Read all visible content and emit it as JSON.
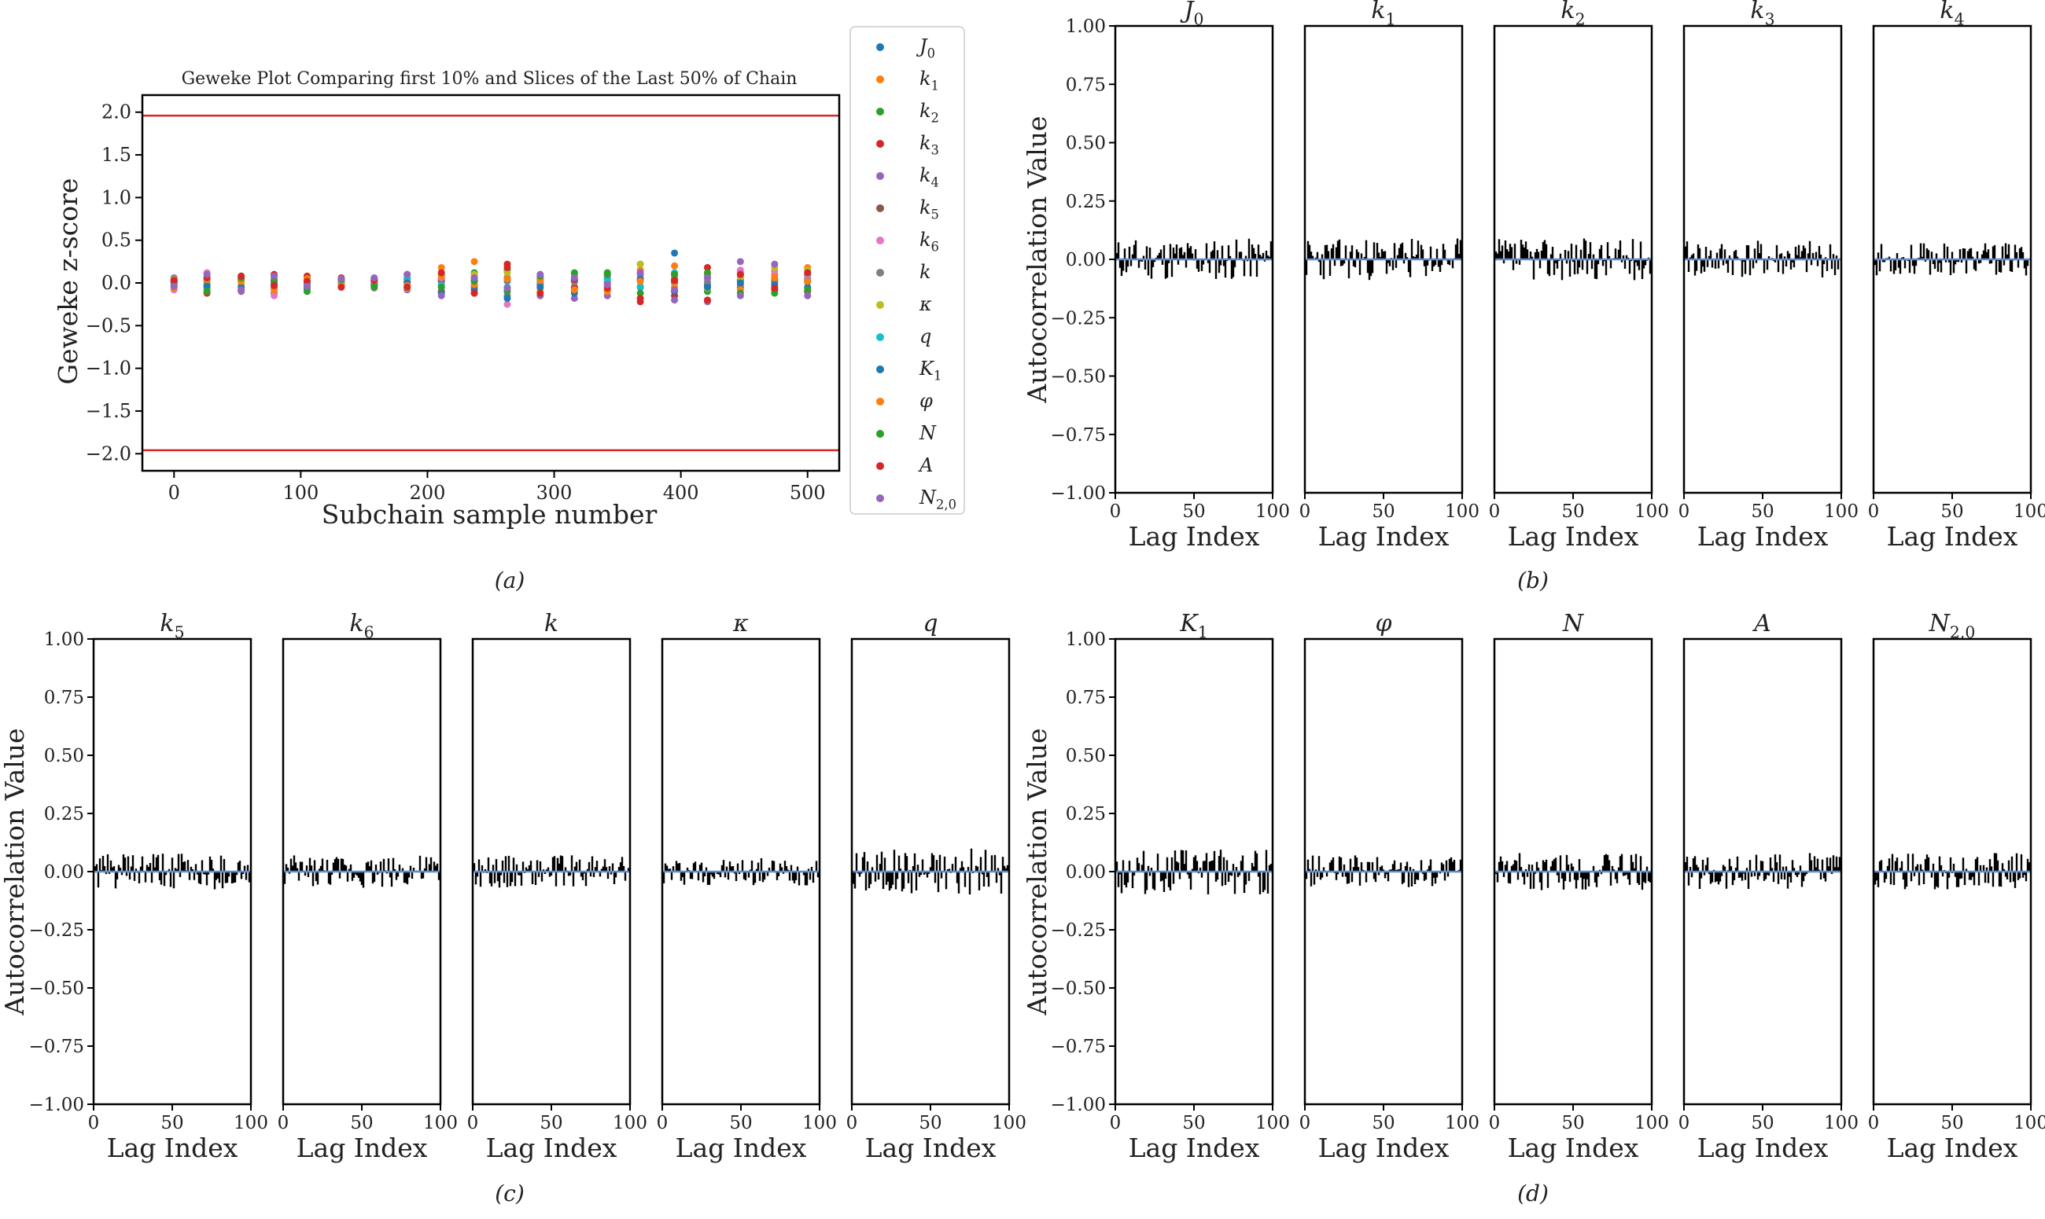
{
  "chart_data": [
    {
      "id": "a",
      "type": "scatter",
      "title": "Geweke Plot Comparing first 10% and Slices of the Last 50% of Chain",
      "xlabel": "Subchain sample number",
      "ylabel": "Geweke z-score",
      "xlim": [
        -25,
        525
      ],
      "ylim": [
        -2.2,
        2.2
      ],
      "xticks": [
        0,
        100,
        200,
        300,
        400,
        500
      ],
      "yticks": [
        2.0,
        1.5,
        1.0,
        0.5,
        0.0,
        -0.5,
        -1.0,
        -1.5,
        -2.0
      ],
      "threshold_lines": [
        1.96,
        -1.96
      ],
      "threshold_color": "#d62728",
      "x": [
        0,
        26,
        53,
        79,
        105,
        132,
        158,
        184,
        211,
        237,
        263,
        289,
        316,
        342,
        368,
        395,
        421,
        447,
        474,
        500
      ],
      "series": [
        {
          "name": "J",
          "sub": "0",
          "color": "#1f77b4",
          "values": [
            0.02,
            -0.05,
            0.03,
            -0.02,
            0.04,
            0.01,
            -0.03,
            0.05,
            0.02,
            -0.04,
            0.06,
            -0.01,
            0.03,
            0.02,
            -0.05,
            0.35,
            -0.02,
            0.04,
            0.01,
            0.02
          ]
        },
        {
          "name": "k",
          "sub": "1",
          "color": "#ff7f0e",
          "values": [
            -0.03,
            0.05,
            -0.02,
            0.06,
            -0.04,
            0.02,
            0.03,
            -0.05,
            0.18,
            0.25,
            -0.08,
            0.04,
            -0.06,
            0.08,
            0.15,
            0.2,
            0.18,
            0.12,
            0.1,
            0.18
          ]
        },
        {
          "name": "k",
          "sub": "2",
          "color": "#2ca02c",
          "values": [
            0.05,
            -0.08,
            0.04,
            -0.06,
            0.02,
            -0.03,
            0.05,
            0.02,
            0.1,
            0.12,
            0.15,
            0.05,
            0.1,
            0.12,
            0.22,
            0.05,
            -0.1,
            0.08,
            0.05,
            0.1
          ]
        },
        {
          "name": "k",
          "sub": "3",
          "color": "#d62728",
          "values": [
            -0.05,
            -0.12,
            -0.08,
            0.1,
            0.08,
            0.06,
            -0.04,
            0.1,
            -0.1,
            -0.12,
            0.22,
            0.05,
            -0.05,
            -0.08,
            -0.22,
            -0.15,
            0.18,
            -0.05,
            -0.08,
            -0.1
          ]
        },
        {
          "name": "k",
          "sub": "4",
          "color": "#9467bd",
          "values": [
            0.06,
            0.08,
            -0.1,
            -0.12,
            -0.05,
            0.04,
            0.05,
            -0.08,
            0.05,
            -0.05,
            -0.15,
            -0.15,
            -0.18,
            -0.15,
            0.1,
            -0.2,
            -0.22,
            0.25,
            -0.05,
            0.08
          ]
        },
        {
          "name": "k",
          "sub": "5",
          "color": "#8c564b",
          "values": [
            0.03,
            0.02,
            0.05,
            0.01,
            -0.02,
            -0.03,
            0.02,
            0.04,
            0.03,
            0.02,
            0.05,
            -0.03,
            0.02,
            0.01,
            0.03,
            0.02,
            -0.04,
            0.02,
            0.03,
            0.05
          ]
        },
        {
          "name": "k",
          "sub": "6",
          "color": "#e377c2",
          "values": [
            -0.08,
            0.12,
            0.06,
            -0.15,
            0.03,
            -0.05,
            -0.06,
            0.03,
            0.06,
            0.08,
            -0.25,
            0.06,
            0.08,
            0.04,
            0.12,
            0.1,
            0.05,
            0.15,
            0.14,
            0.06
          ]
        },
        {
          "name": "k",
          "sub": "",
          "color": "#7f7f7f",
          "values": [
            0.01,
            -0.02,
            0.02,
            0.0,
            -0.01,
            0.02,
            -0.02,
            0.01,
            -0.02,
            0.03,
            0.02,
            -0.01,
            0.01,
            -0.02,
            0.02,
            0.0,
            0.01,
            -0.02,
            0.02,
            0.01
          ]
        },
        {
          "name": "κ",
          "sub": "",
          "color": "#bcbd22",
          "values": [
            0.04,
            -0.06,
            -0.02,
            0.05,
            -0.08,
            0.03,
            0.04,
            -0.06,
            -0.05,
            0.1,
            0.12,
            -0.08,
            -0.1,
            -0.03,
            0.22,
            0.08,
            -0.06,
            0.06,
            0.18,
            0.15
          ]
        },
        {
          "name": "q",
          "sub": "",
          "color": "#17becf",
          "values": [
            -0.02,
            0.03,
            0.08,
            -0.04,
            0.02,
            0.0,
            -0.02,
            0.06,
            -0.03,
            0.05,
            -0.05,
            0.02,
            0.03,
            0.05,
            -0.04,
            0.12,
            0.08,
            0.1,
            0.06,
            0.03
          ]
        },
        {
          "name": "K",
          "sub": "1",
          "color": "#1f77b4",
          "values": [
            0.02,
            -0.04,
            -0.05,
            0.02,
            -0.06,
            0.04,
            -0.01,
            0.0,
            -0.12,
            -0.08,
            -0.18,
            -0.05,
            -0.12,
            0.1,
            0.05,
            -0.1,
            -0.05,
            0.0,
            -0.02,
            -0.05
          ]
        },
        {
          "name": "φ",
          "sub": "",
          "color": "#ff7f0e",
          "values": [
            -0.06,
            0.04,
            0.02,
            -0.08,
            0.05,
            -0.02,
            0.02,
            -0.03,
            0.08,
            -0.02,
            0.05,
            0.03,
            -0.08,
            -0.1,
            0.02,
            -0.05,
            0.1,
            -0.08,
            0.06,
            0.02
          ]
        },
        {
          "name": "N",
          "sub": "",
          "color": "#2ca02c",
          "values": [
            0.0,
            -0.1,
            0.06,
            0.03,
            -0.1,
            0.04,
            -0.05,
            -0.05,
            -0.05,
            0.02,
            -0.1,
            0.08,
            0.12,
            0.1,
            -0.12,
            0.1,
            0.12,
            -0.12,
            -0.12,
            -0.08
          ]
        },
        {
          "name": "A",
          "sub": "",
          "color": "#d62728",
          "values": [
            0.03,
            0.06,
            0.08,
            -0.03,
            0.02,
            -0.05,
            0.03,
            -0.05,
            0.12,
            -0.12,
            0.18,
            -0.12,
            0.04,
            -0.06,
            -0.18,
            0.03,
            -0.2,
            0.1,
            -0.06,
            0.12
          ]
        },
        {
          "name": "N",
          "sub": "2,0",
          "color": "#9467bd",
          "values": [
            -0.04,
            0.1,
            -0.08,
            0.08,
            -0.04,
            0.05,
            0.06,
            0.1,
            -0.15,
            0.06,
            -0.06,
            0.1,
            0.06,
            -0.02,
            0.12,
            -0.08,
            0.06,
            -0.15,
            0.22,
            -0.15
          ]
        }
      ]
    },
    {
      "id": "autocorr",
      "type": "bar",
      "ylabel": "Autocorrelation Value",
      "xlabel": "Lag Index",
      "xlim": [
        0,
        100
      ],
      "ylim": [
        -1.0,
        1.0
      ],
      "xticks": [
        0,
        50,
        100
      ],
      "yticks": [
        "1.00",
        "0.75",
        "0.50",
        "0.25",
        "0.00",
        "−0.25",
        "−0.50",
        "−0.75",
        "−1.00"
      ],
      "ytick_values": [
        1.0,
        0.75,
        0.5,
        0.25,
        0.0,
        -0.25,
        -0.5,
        -0.75,
        -1.0
      ],
      "mean_line_color": "#5b8bd0",
      "bar_color": "#000000",
      "note": "100 lags per parameter; bars oscillate within roughly ±0.1 (estimated)",
      "groups": [
        {
          "id": "b",
          "caption": "(b)",
          "panels": [
            {
              "name": "J",
              "sub": "0",
              "amp": 0.09,
              "seed": 11
            },
            {
              "name": "k",
              "sub": "1",
              "amp": 0.09,
              "seed": 23
            },
            {
              "name": "k",
              "sub": "2",
              "amp": 0.09,
              "seed": 37
            },
            {
              "name": "k",
              "sub": "3",
              "amp": 0.08,
              "seed": 41
            },
            {
              "name": "k",
              "sub": "4",
              "amp": 0.07,
              "seed": 53
            }
          ]
        },
        {
          "id": "c",
          "caption": "(c)",
          "panels": [
            {
              "name": "k",
              "sub": "5",
              "amp": 0.08,
              "seed": 61
            },
            {
              "name": "k",
              "sub": "6",
              "amp": 0.07,
              "seed": 73
            },
            {
              "name": "k",
              "sub": "",
              "amp": 0.07,
              "seed": 89
            },
            {
              "name": "κ",
              "sub": "",
              "amp": 0.06,
              "seed": 97
            },
            {
              "name": "q",
              "sub": "",
              "amp": 0.1,
              "seed": 101
            }
          ]
        },
        {
          "id": "d",
          "caption": "(d)",
          "panels": [
            {
              "name": "K",
              "sub": "1",
              "amp": 0.1,
              "seed": 113
            },
            {
              "name": "φ",
              "sub": "",
              "amp": 0.07,
              "seed": 127
            },
            {
              "name": "N",
              "sub": "",
              "amp": 0.08,
              "seed": 131
            },
            {
              "name": "A",
              "sub": "",
              "amp": 0.08,
              "seed": 139
            },
            {
              "name": "N",
              "sub": "2,0",
              "amp": 0.08,
              "seed": 149
            }
          ]
        }
      ]
    }
  ],
  "captions": {
    "a": "(a)"
  }
}
